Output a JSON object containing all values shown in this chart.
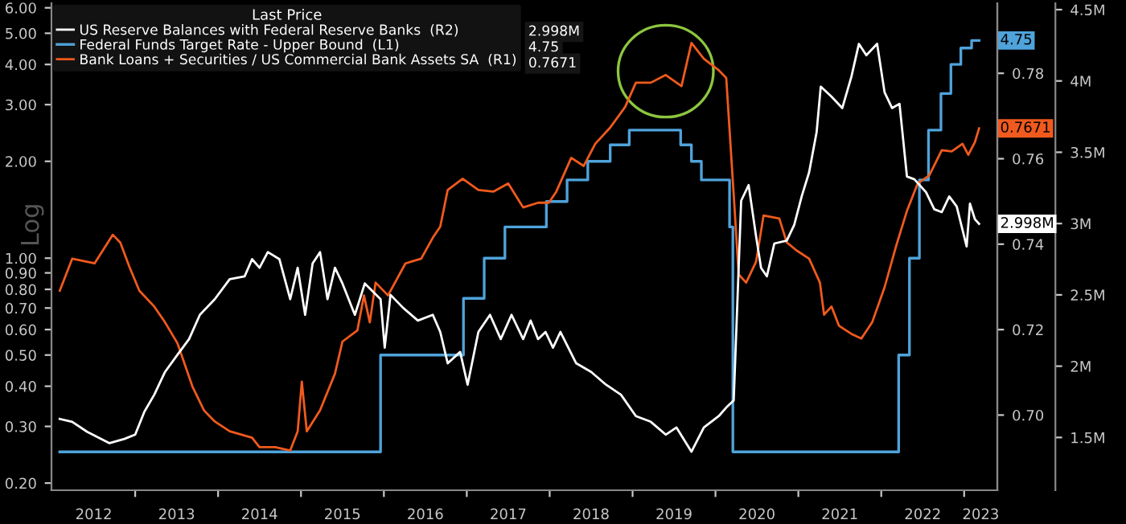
{
  "chart_data": {
    "type": "line",
    "legend_title": "Last Price",
    "ylabel": "Log",
    "log": true,
    "legend": "top left",
    "grid": false,
    "xlim": [
      2011.99,
      2023.4
    ],
    "xticks": [
      {
        "value": 2012.5,
        "label": "2012"
      },
      {
        "value": 2013,
        "label": null
      },
      {
        "value": 2013.5,
        "label": "2013"
      },
      {
        "value": 2014,
        "label": null
      },
      {
        "value": 2014.5,
        "label": "2014"
      },
      {
        "value": 2015,
        "label": null
      },
      {
        "value": 2015.5,
        "label": "2015"
      },
      {
        "value": 2016,
        "label": null
      },
      {
        "value": 2016.5,
        "label": "2016"
      },
      {
        "value": 2017,
        "label": null
      },
      {
        "value": 2017.5,
        "label": "2017"
      },
      {
        "value": 2018,
        "label": null
      },
      {
        "value": 2018.5,
        "label": "2018"
      },
      {
        "value": 2019,
        "label": null
      },
      {
        "value": 2019.5,
        "label": "2019"
      },
      {
        "value": 2020,
        "label": null
      },
      {
        "value": 2020.5,
        "label": "2020"
      },
      {
        "value": 2021,
        "label": null
      },
      {
        "value": 2021.5,
        "label": "2021"
      },
      {
        "value": 2022,
        "label": null
      },
      {
        "value": 2022.5,
        "label": "2022"
      },
      {
        "value": 2023,
        "label": null
      },
      {
        "value": 2023.2,
        "label": "2023"
      }
    ],
    "ylim": [
      0.19,
      6.2
    ],
    "yticks": [
      {
        "value": 0.2,
        "label": "0.20"
      },
      {
        "value": 0.3,
        "label": "0.30"
      },
      {
        "value": 0.4,
        "label": "0.40"
      },
      {
        "value": 0.5,
        "label": "0.50"
      },
      {
        "value": 0.6,
        "label": "0.60"
      },
      {
        "value": 0.7,
        "label": "0.70"
      },
      {
        "value": 0.8,
        "label": "0.80"
      },
      {
        "value": 0.9,
        "label": "0.90"
      },
      {
        "value": 1.0,
        "label": "1.00"
      },
      {
        "value": 2.0,
        "label": "2.00"
      },
      {
        "value": 3.0,
        "label": "3.00"
      },
      {
        "value": 4.0,
        "label": "4.00"
      },
      {
        "value": 5.0,
        "label": "5.00"
      },
      {
        "value": 6.0,
        "label": "6.00"
      }
    ],
    "y2lim": [
      0.6824,
      0.7964
    ],
    "y2ticks": [
      {
        "value": 0.7,
        "label": "0.70"
      },
      {
        "value": 0.72,
        "label": "0.72"
      },
      {
        "value": 0.74,
        "label": "0.74"
      },
      {
        "value": 0.76,
        "label": "0.76"
      },
      {
        "value": 0.78,
        "label": "0.78"
      }
    ],
    "y3lim": [
      1.13,
      4.545
    ],
    "y3ticks": [
      {
        "value": 1.5,
        "label": "1.5M"
      },
      {
        "value": 2.0,
        "label": "2M"
      },
      {
        "value": 2.5,
        "label": "2.5M"
      },
      {
        "value": 3.0,
        "label": "3M"
      },
      {
        "value": 3.5,
        "label": "3.5M"
      },
      {
        "value": 4.0,
        "label": "4M"
      },
      {
        "value": 4.5,
        "label": "4.5M"
      }
    ],
    "series": [
      {
        "name": "US Reserve Balances with Federal Reserve Banks  (R2)",
        "color": "#ffffff",
        "axis": "y3",
        "x": [
          2012.09,
          2012.24,
          2012.42,
          2012.69,
          2012.87,
          2013.0,
          2013.11,
          2013.23,
          2013.36,
          2013.51,
          2013.65,
          2013.78,
          2013.96,
          2014.14,
          2014.32,
          2014.41,
          2014.5,
          2014.6,
          2014.74,
          2014.87,
          2014.96,
          2015.05,
          2015.14,
          2015.23,
          2015.32,
          2015.41,
          2015.5,
          2015.65,
          2015.77,
          2015.96,
          2016.01,
          2016.08,
          2016.23,
          2016.41,
          2016.59,
          2016.68,
          2016.77,
          2016.92,
          2017.01,
          2017.14,
          2017.28,
          2017.41,
          2017.54,
          2017.68,
          2017.77,
          2017.86,
          2017.95,
          2018.04,
          2018.13,
          2018.32,
          2018.5,
          2018.68,
          2018.86,
          2019.04,
          2019.22,
          2019.4,
          2019.53,
          2019.71,
          2019.86,
          2020.04,
          2020.13,
          2020.22,
          2020.31,
          2020.4,
          2020.49,
          2020.55,
          2020.62,
          2020.71,
          2020.86,
          2020.95,
          2021.04,
          2021.13,
          2021.22,
          2021.27,
          2021.4,
          2021.53,
          2021.64,
          2021.73,
          2021.82,
          2021.95,
          2022.04,
          2022.13,
          2022.22,
          2022.31,
          2022.4,
          2022.54,
          2022.64,
          2022.73,
          2022.82,
          2022.91,
          2023.03,
          2023.07,
          2023.13,
          2023.18
        ],
        "values": [
          1.63,
          1.61,
          1.54,
          1.46,
          1.49,
          1.52,
          1.68,
          1.8,
          1.96,
          2.08,
          2.19,
          2.36,
          2.47,
          2.61,
          2.63,
          2.75,
          2.69,
          2.8,
          2.75,
          2.47,
          2.69,
          2.36,
          2.72,
          2.8,
          2.47,
          2.69,
          2.58,
          2.36,
          2.58,
          2.47,
          2.13,
          2.5,
          2.41,
          2.32,
          2.36,
          2.24,
          2.02,
          2.1,
          1.87,
          2.24,
          2.36,
          2.19,
          2.36,
          2.19,
          2.32,
          2.19,
          2.24,
          2.13,
          2.24,
          2.02,
          1.96,
          1.87,
          1.8,
          1.65,
          1.61,
          1.52,
          1.57,
          1.4,
          1.57,
          1.65,
          1.71,
          1.76,
          3.16,
          3.27,
          2.91,
          2.69,
          2.63,
          2.86,
          2.88,
          2.99,
          3.19,
          3.36,
          3.64,
          3.96,
          3.89,
          3.81,
          4.03,
          4.26,
          4.18,
          4.26,
          3.92,
          3.81,
          3.84,
          3.33,
          3.31,
          3.22,
          3.1,
          3.08,
          3.19,
          3.12,
          2.84,
          3.14,
          3.03,
          2.998
        ],
        "value_labels": [
          null,
          null,
          null,
          null,
          null,
          null,
          null,
          null,
          null,
          null,
          null,
          null,
          null,
          null,
          null,
          null,
          null,
          null,
          null,
          null,
          null,
          null,
          null,
          null,
          null,
          null,
          null,
          null,
          null,
          null,
          null,
          null,
          null,
          null,
          null,
          null,
          null,
          null,
          null,
          null,
          null,
          null,
          null,
          null,
          null,
          null,
          null,
          null,
          null,
          null,
          null,
          null,
          null,
          null,
          null,
          null,
          null,
          null,
          null,
          null,
          null,
          null,
          null,
          null,
          null,
          null,
          null,
          null,
          null,
          null,
          null,
          null,
          null,
          null,
          null,
          null,
          null,
          null,
          null,
          null,
          null,
          null,
          null,
          null,
          null,
          null,
          null,
          null,
          null,
          null,
          null,
          null,
          null,
          "2.998M"
        ]
      },
      {
        "name": "Federal Funds Target Rate - Upper Bound  (L1)",
        "color": "#4fa3db",
        "axis": "y",
        "type": "step",
        "x": [
          2012.09,
          2015.96,
          2016.96,
          2017.21,
          2017.46,
          2017.96,
          2018.21,
          2018.46,
          2018.73,
          2018.96,
          2019.58,
          2019.71,
          2019.83,
          2020.17,
          2020.21,
          2022.21,
          2022.34,
          2022.46,
          2022.57,
          2022.72,
          2022.84,
          2022.96,
          2023.09,
          2023.18
        ],
        "values": [
          0.25,
          0.5,
          0.75,
          1.0,
          1.25,
          1.5,
          1.75,
          2.0,
          2.25,
          2.5,
          2.25,
          2.0,
          1.75,
          1.25,
          0.25,
          0.5,
          1.0,
          1.75,
          2.5,
          3.25,
          4.0,
          4.5,
          4.75,
          4.75
        ],
        "value_labels": [
          null,
          null,
          null,
          null,
          null,
          null,
          null,
          null,
          null,
          null,
          null,
          null,
          null,
          null,
          null,
          null,
          null,
          null,
          null,
          null,
          null,
          null,
          null,
          "4.75"
        ]
      },
      {
        "name": "Bank Loans + Securities / US Commercial Bank Assets SA  (R1)",
        "color": "#f05a1e",
        "axis": "y2",
        "x": [
          2012.09,
          2012.24,
          2012.51,
          2012.73,
          2012.82,
          2012.93,
          2013.05,
          2013.23,
          2013.36,
          2013.51,
          2013.69,
          2013.83,
          2013.96,
          2014.14,
          2014.41,
          2014.5,
          2014.69,
          2014.87,
          2014.96,
          2015.01,
          2015.07,
          2015.23,
          2015.41,
          2015.5,
          2015.68,
          2015.76,
          2015.83,
          2015.9,
          2016.05,
          2016.26,
          2016.45,
          2016.59,
          2016.68,
          2016.77,
          2016.95,
          2017.14,
          2017.32,
          2017.5,
          2017.68,
          2017.86,
          2017.99,
          2018.08,
          2018.26,
          2018.41,
          2018.55,
          2018.73,
          2018.91,
          2019.04,
          2019.22,
          2019.4,
          2019.59,
          2019.71,
          2019.86,
          2020.04,
          2020.13,
          2020.22,
          2020.28,
          2020.37,
          2020.49,
          2020.58,
          2020.77,
          2020.86,
          2020.98,
          2021.13,
          2021.26,
          2021.31,
          2021.4,
          2021.49,
          2021.64,
          2021.76,
          2021.89,
          2022.04,
          2022.18,
          2022.31,
          2022.44,
          2022.58,
          2022.73,
          2022.85,
          2022.98,
          2023.05,
          2023.13,
          2023.18
        ],
        "values": [
          0.7291,
          0.7366,
          0.7355,
          0.7422,
          0.7404,
          0.7347,
          0.7291,
          0.7254,
          0.7217,
          0.7168,
          0.7067,
          0.7011,
          0.6985,
          0.6962,
          0.6947,
          0.6925,
          0.6925,
          0.6917,
          0.6962,
          0.7078,
          0.6962,
          0.7011,
          0.7097,
          0.7172,
          0.7198,
          0.728,
          0.7217,
          0.731,
          0.728,
          0.7355,
          0.7366,
          0.7415,
          0.7441,
          0.7527,
          0.7553,
          0.7527,
          0.7523,
          0.7542,
          0.7486,
          0.7497,
          0.7497,
          0.7523,
          0.7602,
          0.7583,
          0.7635,
          0.7673,
          0.7721,
          0.7778,
          0.7778,
          0.7796,
          0.777,
          0.7871,
          0.7834,
          0.7807,
          0.7789,
          0.7516,
          0.7329,
          0.731,
          0.7359,
          0.7467,
          0.746,
          0.7404,
          0.7385,
          0.7366,
          0.731,
          0.7235,
          0.7254,
          0.7209,
          0.719,
          0.7179,
          0.7217,
          0.7299,
          0.7396,
          0.7478,
          0.7542,
          0.7561,
          0.762,
          0.7617,
          0.7635,
          0.7609,
          0.7639,
          0.7671
        ],
        "value_labels": [
          null,
          null,
          null,
          null,
          null,
          null,
          null,
          null,
          null,
          null,
          null,
          null,
          null,
          null,
          null,
          null,
          null,
          null,
          null,
          null,
          null,
          null,
          null,
          null,
          null,
          null,
          null,
          null,
          null,
          null,
          null,
          null,
          null,
          null,
          null,
          null,
          null,
          null,
          null,
          null,
          null,
          null,
          null,
          null,
          null,
          null,
          null,
          null,
          null,
          null,
          null,
          null,
          null,
          null,
          null,
          null,
          null,
          null,
          null,
          null,
          null,
          null,
          null,
          null,
          null,
          null,
          null,
          null,
          null,
          null,
          null,
          null,
          null,
          null,
          null,
          null,
          null,
          null,
          null,
          null,
          null,
          "0.7671"
        ]
      }
    ]
  }
}
